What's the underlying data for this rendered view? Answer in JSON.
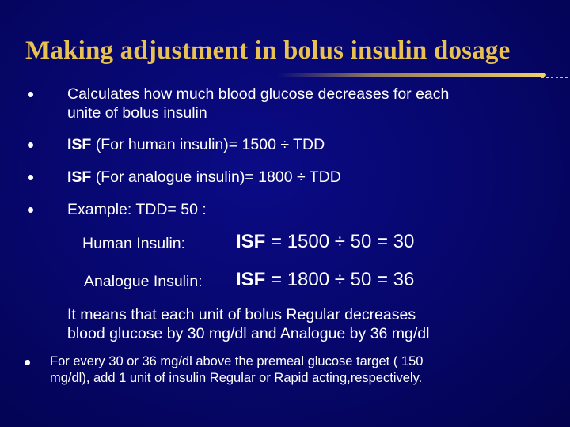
{
  "slide": {
    "title": "Making adjustment in bolus insulin dosage",
    "bullets": [
      {
        "lines": [
          "Calculates how much blood glucose decreases for each",
          "unite of bolus insulin"
        ]
      },
      {
        "isf": "ISF",
        "text": " (For human insulin)= 1500 ÷ TDD"
      },
      {
        "isf": "ISF",
        "text": " (For analogue insulin)= 1800 ÷ TDD"
      },
      {
        "text": "Example: TDD= 50 :"
      }
    ],
    "examples": [
      {
        "label": "Human Insulin:",
        "isf": "ISF",
        "equation": " = 1500 ÷ 50 = 30"
      },
      {
        "label": "Analogue Insulin:",
        "isf": "ISF",
        "equation": " = 1800 ÷ 50 = 36"
      }
    ],
    "meaning_lines": [
      "It means that each unit of bolus Regular decreases",
      "blood glucose by 30 mg/dl and Analogue by 36 mg/dl"
    ],
    "last_bullet_lines": [
      "For every 30 or 36 mg/dl above the premeal glucose target ( 150",
      "mg/dl), add 1 unit of insulin Regular or Rapid acting,respectively."
    ]
  }
}
